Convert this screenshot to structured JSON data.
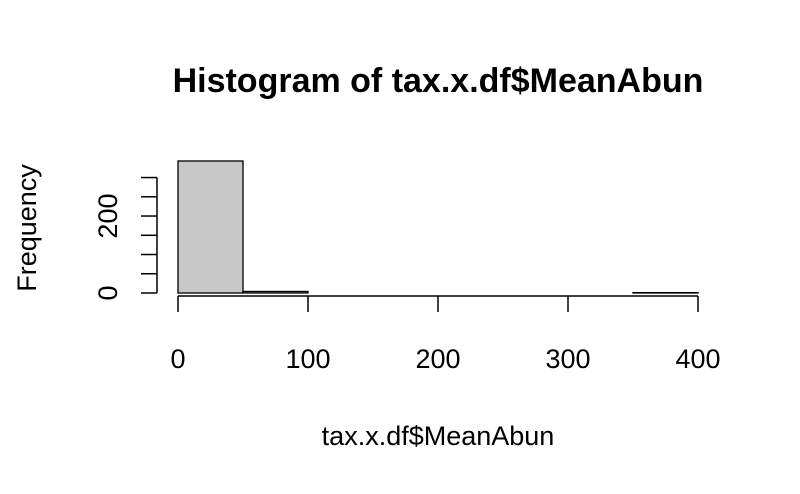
{
  "chart_data": {
    "type": "bar",
    "title": "Histogram of tax.x.df$MeanAbun",
    "xlabel": "tax.x.df$MeanAbun",
    "ylabel": "Frequency",
    "bin_edges": [
      0,
      50,
      100,
      150,
      200,
      250,
      300,
      350,
      400
    ],
    "values": [
      343,
      4,
      0,
      0,
      0,
      0,
      0,
      1
    ],
    "xlim": [
      0,
      400
    ],
    "ylim": [
      0,
      343
    ],
    "x_ticks": [
      0,
      100,
      200,
      300,
      400
    ],
    "x_tick_labels": [
      "0",
      "100",
      "200",
      "300",
      "400"
    ],
    "y_ticks": [
      0,
      50,
      100,
      150,
      200,
      250,
      300
    ],
    "y_tick_labels": [
      "0",
      "",
      "",
      "",
      "200",
      "",
      ""
    ],
    "bar_color": "#c8c8c8",
    "border_color": "#000000",
    "grid": false,
    "legend": "none"
  }
}
